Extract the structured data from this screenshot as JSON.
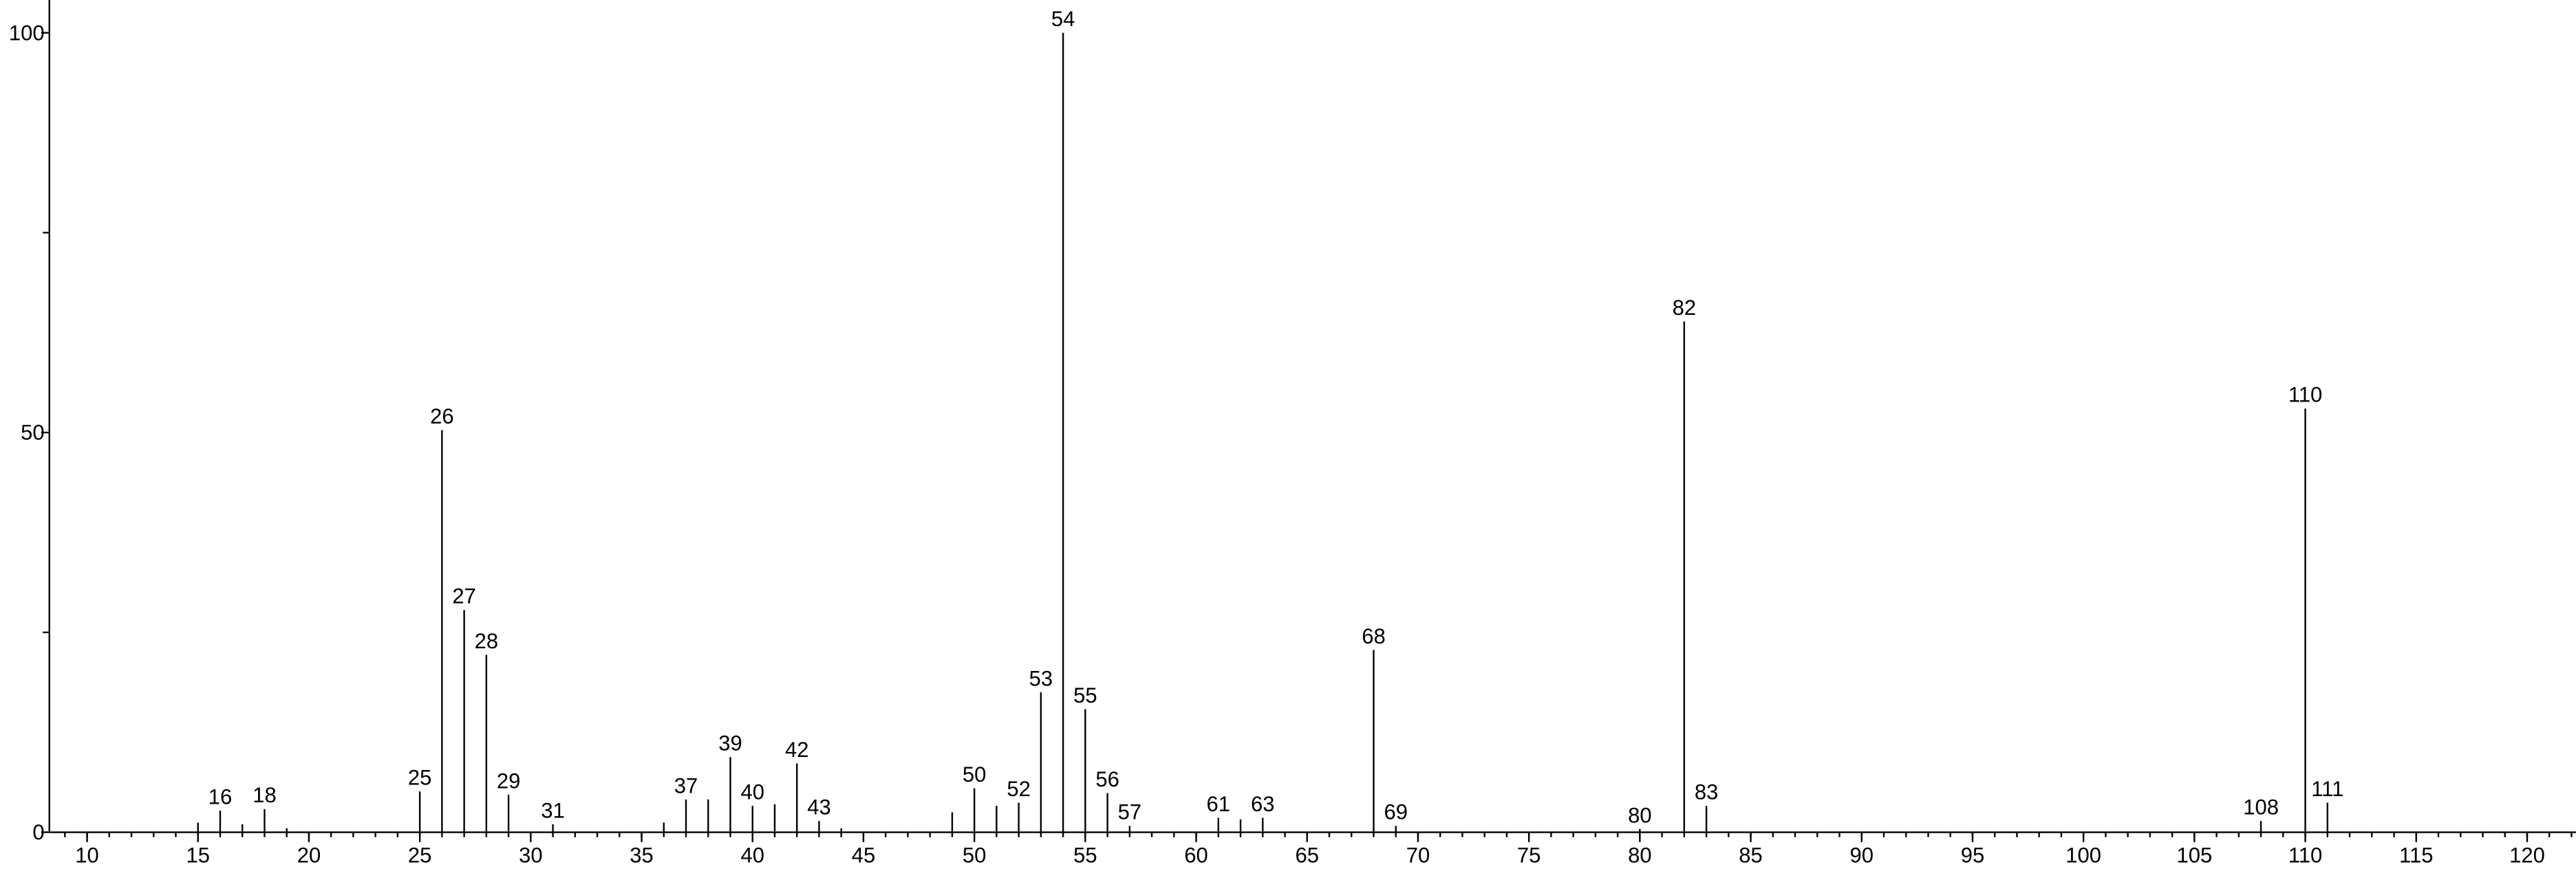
{
  "chart_data": {
    "type": "bar",
    "x": [
      15,
      16,
      17,
      18,
      19,
      25,
      26,
      27,
      28,
      29,
      31,
      36,
      37,
      38,
      39,
      40,
      41,
      42,
      43,
      44,
      49,
      50,
      51,
      52,
      53,
      54,
      55,
      56,
      57,
      61,
      62,
      63,
      68,
      69,
      80,
      82,
      83,
      108,
      110,
      111
    ],
    "values": [
      1.2,
      2.7,
      1,
      2.9,
      0.5,
      5.1,
      50.3,
      27.8,
      22.2,
      4.7,
      1,
      1.2,
      4.1,
      4.1,
      9.4,
      3.3,
      3.5,
      8.6,
      1.4,
      0.5,
      2.5,
      5.5,
      3.3,
      3.7,
      17.5,
      100,
      15.4,
      4.9,
      0.8,
      1.8,
      1.6,
      1.8,
      22.8,
      0.8,
      0.4,
      63.9,
      3.3,
      1.4,
      53,
      3.7
    ],
    "peak_labels": [
      null,
      "16",
      null,
      "18",
      null,
      "25",
      "26",
      "27",
      "28",
      "29",
      "31",
      null,
      "37",
      null,
      "39",
      "40",
      null,
      "42",
      "43",
      null,
      null,
      "50",
      null,
      "52",
      "53",
      "54",
      "55",
      "56",
      "57",
      "61",
      null,
      "63",
      "68",
      "69",
      "80",
      "82",
      "83",
      "108",
      "110",
      "111"
    ],
    "color": "#000000",
    "xlim": [
      8.3,
      122.2
    ],
    "xticks": [
      10,
      15,
      20,
      25,
      30,
      35,
      40,
      45,
      50,
      55,
      60,
      65,
      70,
      75,
      80,
      85,
      90,
      95,
      100,
      105,
      110,
      115,
      120
    ],
    "xminor_step": 1,
    "ylim": [
      0,
      104
    ],
    "yticks": [
      0,
      50,
      100
    ],
    "yminorticks": [
      25,
      75
    ]
  }
}
